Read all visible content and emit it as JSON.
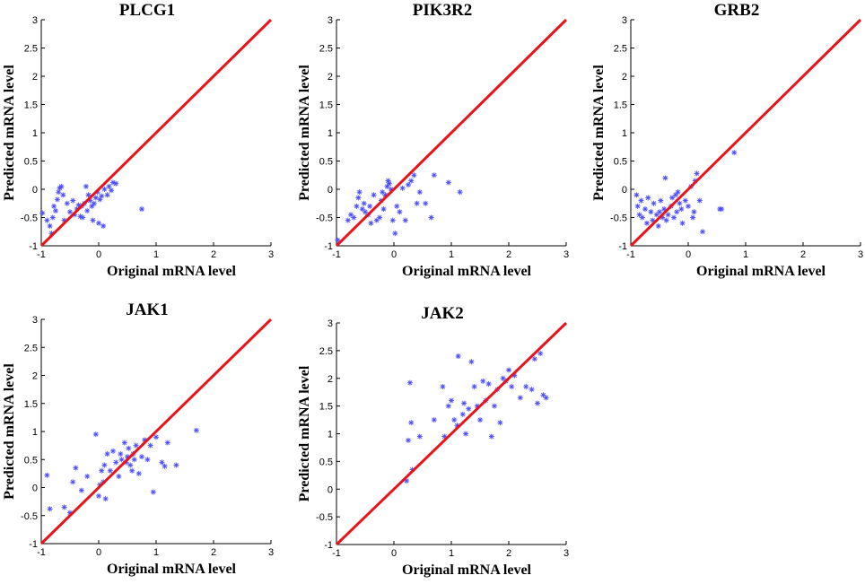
{
  "figure": {
    "description_colors": {
      "marker": "#4a4aff",
      "diagonal": "#e8141a",
      "axis": "#000000"
    }
  },
  "chart_data": [
    {
      "type": "scatter",
      "title": "PLCG1",
      "xlabel": "Original mRNA level",
      "ylabel": "Predicted mRNA level",
      "xlim": [
        -1,
        3
      ],
      "ylim": [
        -1,
        3
      ],
      "xticks": [
        "-1",
        "0",
        "1",
        "2",
        "3"
      ],
      "yticks": [
        "-1",
        "-0.5",
        "0",
        "0.5",
        "1",
        "1.5",
        "2",
        "2.5",
        "3"
      ],
      "reference_line": {
        "x": [
          -1,
          3
        ],
        "y": [
          -1,
          3
        ]
      },
      "points": [
        [
          -0.98,
          -0.42
        ],
        [
          -0.9,
          -0.55
        ],
        [
          -0.85,
          -0.65
        ],
        [
          -0.82,
          -0.78
        ],
        [
          -0.8,
          -0.5
        ],
        [
          -0.78,
          -0.3
        ],
        [
          -0.75,
          -0.38
        ],
        [
          -0.72,
          -0.18
        ],
        [
          -0.7,
          -0.05
        ],
        [
          -0.68,
          0.02
        ],
        [
          -0.65,
          0.05
        ],
        [
          -0.62,
          -0.1
        ],
        [
          -0.6,
          -0.55
        ],
        [
          -0.55,
          -0.25
        ],
        [
          -0.5,
          -0.4
        ],
        [
          -0.45,
          -0.2
        ],
        [
          -0.42,
          -0.45
        ],
        [
          -0.38,
          -0.35
        ],
        [
          -0.35,
          -0.28
        ],
        [
          -0.32,
          -0.48
        ],
        [
          -0.3,
          -0.3
        ],
        [
          -0.28,
          -0.5
        ],
        [
          -0.25,
          -0.25
        ],
        [
          -0.22,
          0.05
        ],
        [
          -0.2,
          -0.38
        ],
        [
          -0.18,
          -0.1
        ],
        [
          -0.15,
          -0.2
        ],
        [
          -0.12,
          -0.3
        ],
        [
          -0.1,
          -0.55
        ],
        [
          -0.08,
          -0.25
        ],
        [
          -0.05,
          -0.15
        ],
        [
          -0.02,
          -0.05
        ],
        [
          0.0,
          -0.6
        ],
        [
          0.02,
          -0.18
        ],
        [
          0.05,
          -0.12
        ],
        [
          0.08,
          -0.65
        ],
        [
          0.1,
          0.0
        ],
        [
          0.15,
          -0.1
        ],
        [
          0.18,
          0.05
        ],
        [
          0.22,
          -0.02
        ],
        [
          0.25,
          0.12
        ],
        [
          0.3,
          0.1
        ],
        [
          0.75,
          -0.35
        ]
      ]
    },
    {
      "type": "scatter",
      "title": "PIK3R2",
      "xlabel": "Original mRNA level",
      "ylabel": "Predicted mRNA level",
      "xlim": [
        -1,
        3
      ],
      "ylim": [
        -1,
        3
      ],
      "xticks": [
        "-1",
        "0",
        "1",
        "2",
        "3"
      ],
      "yticks": [
        "-1",
        "-0.5",
        "0",
        "0.5",
        "1",
        "1.5",
        "2",
        "2.5",
        "3"
      ],
      "reference_line": {
        "x": [
          -1,
          3
        ],
        "y": [
          -1,
          3
        ]
      },
      "points": [
        [
          -0.98,
          -0.9
        ],
        [
          -0.8,
          -0.55
        ],
        [
          -0.75,
          -0.45
        ],
        [
          -0.7,
          -0.5
        ],
        [
          -0.65,
          -0.3
        ],
        [
          -0.62,
          -0.15
        ],
        [
          -0.6,
          -0.05
        ],
        [
          -0.55,
          -0.35
        ],
        [
          -0.52,
          -0.25
        ],
        [
          -0.5,
          -0.4
        ],
        [
          -0.45,
          -0.45
        ],
        [
          -0.42,
          -0.3
        ],
        [
          -0.4,
          -0.6
        ],
        [
          -0.35,
          -0.1
        ],
        [
          -0.3,
          -0.55
        ],
        [
          -0.25,
          -0.5
        ],
        [
          -0.22,
          -0.2
        ],
        [
          -0.2,
          -0.05
        ],
        [
          -0.18,
          -0.35
        ],
        [
          -0.15,
          -0.1
        ],
        [
          -0.12,
          0.05
        ],
        [
          -0.1,
          0.15
        ],
        [
          -0.08,
          0.1
        ],
        [
          -0.05,
          0.0
        ],
        [
          -0.02,
          -0.55
        ],
        [
          0.02,
          -0.78
        ],
        [
          0.05,
          -0.3
        ],
        [
          0.1,
          -0.4
        ],
        [
          0.15,
          0.02
        ],
        [
          0.2,
          -0.55
        ],
        [
          0.25,
          0.08
        ],
        [
          0.3,
          0.15
        ],
        [
          0.35,
          0.25
        ],
        [
          0.4,
          -0.25
        ],
        [
          0.45,
          -0.05
        ],
        [
          0.55,
          -0.25
        ],
        [
          0.65,
          -0.5
        ],
        [
          0.7,
          0.25
        ],
        [
          0.95,
          0.12
        ],
        [
          1.15,
          -0.05
        ]
      ]
    },
    {
      "type": "scatter",
      "title": "GRB2",
      "xlabel": "Original mRNA level",
      "ylabel": "Predicted mRNA level",
      "xlim": [
        -1,
        3
      ],
      "ylim": [
        -1,
        3
      ],
      "xticks": [
        "-1",
        "0",
        "1",
        "2",
        "3"
      ],
      "yticks": [
        "-1",
        "-0.5",
        "0",
        "0.5",
        "1",
        "1.5",
        "2",
        "2.5",
        "3"
      ],
      "reference_line": {
        "x": [
          -1,
          3
        ],
        "y": [
          -1,
          3
        ]
      },
      "points": [
        [
          -0.9,
          -0.1
        ],
        [
          -0.88,
          -0.3
        ],
        [
          -0.85,
          -0.45
        ],
        [
          -0.82,
          -0.2
        ],
        [
          -0.8,
          -0.5
        ],
        [
          -0.75,
          -0.35
        ],
        [
          -0.72,
          -0.6
        ],
        [
          -0.7,
          -0.15
        ],
        [
          -0.65,
          -0.4
        ],
        [
          -0.62,
          -0.55
        ],
        [
          -0.6,
          -0.25
        ],
        [
          -0.55,
          -0.45
        ],
        [
          -0.52,
          -0.65
        ],
        [
          -0.5,
          -0.4
        ],
        [
          -0.48,
          -0.2
        ],
        [
          -0.45,
          -0.5
        ],
        [
          -0.42,
          -0.35
        ],
        [
          -0.4,
          0.2
        ],
        [
          -0.38,
          -0.55
        ],
        [
          -0.35,
          -0.45
        ],
        [
          -0.3,
          -0.3
        ],
        [
          -0.28,
          -0.15
        ],
        [
          -0.25,
          -0.5
        ],
        [
          -0.22,
          -0.1
        ],
        [
          -0.2,
          -0.4
        ],
        [
          -0.18,
          -0.05
        ],
        [
          -0.15,
          -0.25
        ],
        [
          -0.12,
          -0.35
        ],
        [
          -0.1,
          -0.6
        ],
        [
          -0.05,
          -0.2
        ],
        [
          0.0,
          -0.3
        ],
        [
          0.05,
          0.05
        ],
        [
          0.08,
          -0.5
        ],
        [
          0.1,
          -0.4
        ],
        [
          0.12,
          0.15
        ],
        [
          0.15,
          0.28
        ],
        [
          0.2,
          -0.2
        ],
        [
          0.25,
          -0.75
        ],
        [
          0.55,
          -0.35
        ],
        [
          0.58,
          -0.35
        ],
        [
          0.8,
          0.65
        ]
      ]
    },
    {
      "type": "scatter",
      "title": "JAK1",
      "xlabel": "Original mRNA level",
      "ylabel": "Predicted mRNA level",
      "xlim": [
        -1,
        3
      ],
      "ylim": [
        -1,
        3
      ],
      "xticks": [
        "-1",
        "0",
        "1",
        "2",
        "3"
      ],
      "yticks": [
        "-1",
        "-0.5",
        "0",
        "0.5",
        "1",
        "1.5",
        "2",
        "2.5",
        "3"
      ],
      "reference_line": {
        "x": [
          -1,
          3
        ],
        "y": [
          -1,
          3
        ]
      },
      "points": [
        [
          -0.9,
          0.22
        ],
        [
          -0.85,
          -0.38
        ],
        [
          -0.6,
          -0.35
        ],
        [
          -0.5,
          -0.45
        ],
        [
          -0.45,
          0.1
        ],
        [
          -0.4,
          0.35
        ],
        [
          -0.3,
          -0.05
        ],
        [
          -0.2,
          0.2
        ],
        [
          -0.05,
          0.95
        ],
        [
          0.0,
          -0.15
        ],
        [
          0.02,
          0.05
        ],
        [
          0.05,
          0.3
        ],
        [
          0.08,
          0.1
        ],
        [
          0.1,
          0.4
        ],
        [
          0.12,
          -0.2
        ],
        [
          0.15,
          0.6
        ],
        [
          0.2,
          0.3
        ],
        [
          0.25,
          0.65
        ],
        [
          0.3,
          0.45
        ],
        [
          0.35,
          0.2
        ],
        [
          0.38,
          0.6
        ],
        [
          0.4,
          0.5
        ],
        [
          0.45,
          0.8
        ],
        [
          0.48,
          0.45
        ],
        [
          0.5,
          0.55
        ],
        [
          0.52,
          0.7
        ],
        [
          0.55,
          0.4
        ],
        [
          0.58,
          0.3
        ],
        [
          0.6,
          0.6
        ],
        [
          0.62,
          0.5
        ],
        [
          0.65,
          0.75
        ],
        [
          0.7,
          0.25
        ],
        [
          0.75,
          0.55
        ],
        [
          0.8,
          0.85
        ],
        [
          0.85,
          0.5
        ],
        [
          0.9,
          0.75
        ],
        [
          0.95,
          -0.08
        ],
        [
          1.0,
          0.9
        ],
        [
          1.1,
          0.45
        ],
        [
          1.15,
          0.38
        ],
        [
          1.2,
          0.8
        ],
        [
          1.35,
          0.4
        ],
        [
          1.7,
          1.02
        ]
      ]
    },
    {
      "type": "scatter",
      "title": "JAK2",
      "xlabel": "Original mRNA level",
      "ylabel": "Predicted mRNA level",
      "xlim": [
        -1,
        3
      ],
      "ylim": [
        -1,
        3
      ],
      "xticks": [
        "-1",
        "0",
        "1",
        "2",
        "3"
      ],
      "yticks": [
        "-1",
        "-0.5",
        "0",
        "0.5",
        "1",
        "1.5",
        "2",
        "2.5",
        "3"
      ],
      "reference_line": {
        "x": [
          -1,
          3
        ],
        "y": [
          -1,
          3
        ]
      },
      "points": [
        [
          0.22,
          0.15
        ],
        [
          0.25,
          0.88
        ],
        [
          0.28,
          1.92
        ],
        [
          0.3,
          1.2
        ],
        [
          0.32,
          0.35
        ],
        [
          0.45,
          0.95
        ],
        [
          0.7,
          1.25
        ],
        [
          0.85,
          1.85
        ],
        [
          0.88,
          0.95
        ],
        [
          0.95,
          1.5
        ],
        [
          1.0,
          1.6
        ],
        [
          1.05,
          1.25
        ],
        [
          1.1,
          1.15
        ],
        [
          1.12,
          2.4
        ],
        [
          1.2,
          1.35
        ],
        [
          1.22,
          1.55
        ],
        [
          1.25,
          1.0
        ],
        [
          1.3,
          1.45
        ],
        [
          1.35,
          2.3
        ],
        [
          1.4,
          1.85
        ],
        [
          1.45,
          1.5
        ],
        [
          1.5,
          1.25
        ],
        [
          1.55,
          1.95
        ],
        [
          1.6,
          1.6
        ],
        [
          1.65,
          1.9
        ],
        [
          1.7,
          0.95
        ],
        [
          1.75,
          1.5
        ],
        [
          1.8,
          1.8
        ],
        [
          1.85,
          1.2
        ],
        [
          1.9,
          2.0
        ],
        [
          1.95,
          1.95
        ],
        [
          2.0,
          2.15
        ],
        [
          2.05,
          1.85
        ],
        [
          2.1,
          2.05
        ],
        [
          2.2,
          1.65
        ],
        [
          2.3,
          1.85
        ],
        [
          2.4,
          1.8
        ],
        [
          2.45,
          2.35
        ],
        [
          2.5,
          1.55
        ],
        [
          2.55,
          2.45
        ],
        [
          2.6,
          1.7
        ],
        [
          2.65,
          1.65
        ]
      ]
    }
  ]
}
